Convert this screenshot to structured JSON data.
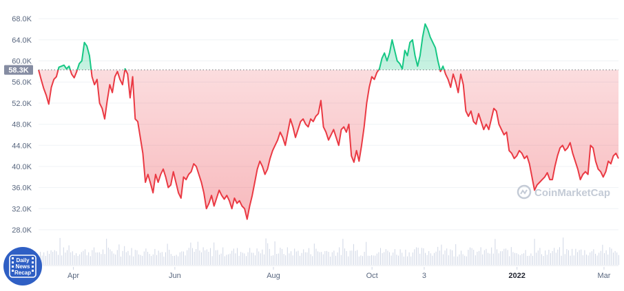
{
  "chart_data": {
    "type": "area",
    "y_ticks": [
      "68.0K",
      "64.0K",
      "60.0K",
      "56.0K",
      "52.0K",
      "48.0K",
      "44.0K",
      "40.0K",
      "36.0K",
      "32.0K",
      "28.0K"
    ],
    "y_tick_values": [
      68000,
      64000,
      60000,
      56000,
      52000,
      48000,
      44000,
      40000,
      36000,
      32000,
      28000
    ],
    "ylim": [
      25000,
      70500
    ],
    "x_ticks": [
      {
        "label": "Apr",
        "t": 0.06,
        "bold": false
      },
      {
        "label": "Jun",
        "t": 0.235,
        "bold": false
      },
      {
        "label": "Aug",
        "t": 0.405,
        "bold": false
      },
      {
        "label": "Oct",
        "t": 0.575,
        "bold": false
      },
      {
        "label": "3",
        "t": 0.665,
        "bold": false
      },
      {
        "label": "2022",
        "t": 0.825,
        "bold": true
      },
      {
        "label": "Mar",
        "t": 0.975,
        "bold": false
      }
    ],
    "reference": {
      "label": "58.3K",
      "value": 58300
    },
    "grid": true,
    "colors": {
      "above": "#16c784",
      "below": "#ea3943",
      "grid": "#eff2f5",
      "volume": "#cfd6e4",
      "ref_badge": "#858ca2"
    },
    "series": [
      {
        "values": [
          58300,
          56500,
          54800,
          53500,
          51800,
          55000,
          56500,
          57000,
          58800,
          59000,
          59200,
          58500,
          59000,
          57500,
          56800,
          58000,
          59500,
          60000,
          63500,
          62800,
          61000,
          57000,
          55500,
          56500,
          52000,
          51000,
          49000,
          52500,
          55500,
          54000,
          57000,
          58000,
          56500,
          55500,
          58500,
          57500,
          53000,
          57000,
          49000,
          48500,
          45500,
          42500,
          37000,
          38500,
          36800,
          35000,
          38500,
          37000,
          38500,
          39500,
          38000,
          36000,
          36500,
          39000,
          37000,
          35000,
          34000,
          38000,
          37500,
          38500,
          39000,
          40500,
          40000,
          38500,
          37000,
          35000,
          32000,
          33000,
          34500,
          32500,
          34000,
          35500,
          34500,
          33800,
          34500,
          33500,
          32000,
          34000,
          33000,
          33500,
          32500,
          32000,
          30000,
          32500,
          34500,
          37000,
          39500,
          41000,
          40000,
          38500,
          39500,
          41500,
          43000,
          44000,
          45000,
          46500,
          45500,
          44000,
          46500,
          49000,
          47500,
          45500,
          47000,
          48500,
          49000,
          48000,
          47500,
          49000,
          48500,
          49500,
          50000,
          52500,
          47500,
          46500,
          45000,
          46000,
          47000,
          45500,
          44000,
          47000,
          47500,
          46500,
          48000,
          42000,
          40800,
          43000,
          41000,
          44000,
          47500,
          52000,
          55000,
          57000,
          56500,
          57800,
          58500,
          60500,
          61500,
          60000,
          61500,
          64000,
          62000,
          60000,
          59500,
          58500,
          62000,
          61000,
          63500,
          64000,
          61000,
          59000,
          61000,
          64500,
          67000,
          66000,
          64500,
          63500,
          62500,
          60000,
          58000,
          59000,
          57500,
          56500,
          55000,
          57500,
          56000,
          54000,
          57500,
          55500,
          50500,
          49500,
          50500,
          48500,
          48000,
          50000,
          48500,
          47000,
          48000,
          47000,
          49000,
          51000,
          50500,
          48000,
          47000,
          46000,
          46500,
          43000,
          42500,
          41500,
          42000,
          43000,
          42500,
          41500,
          42000,
          40500,
          38000,
          35500,
          36500,
          37000,
          37500,
          38000,
          38800,
          37500,
          37500,
          40000,
          42000,
          43500,
          44000,
          43000,
          43500,
          44500,
          42500,
          41000,
          39500,
          37500,
          38500,
          39000,
          38500,
          44000,
          43500,
          41000,
          39500,
          39000,
          38000,
          39000,
          41000,
          40500,
          42000,
          42500,
          41500
        ]
      }
    ]
  },
  "watermark": {
    "text": "CoinMarketCap",
    "icon": "coinmarketcap-logo-icon"
  },
  "badge": {
    "line1": "Daily",
    "line2": "News",
    "line3": "Recap",
    "icon": "film-icon"
  }
}
